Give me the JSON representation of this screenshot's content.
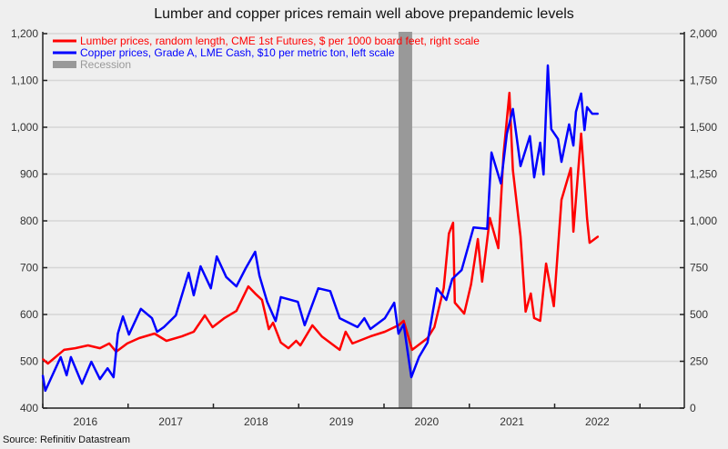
{
  "chart_data": {
    "type": "line",
    "title": "Lumber and copper prices remain well above prepandemic levels",
    "source": "Source: Refinitiv Datastream",
    "x_range": [
      2016.0,
      2023.52
    ],
    "x_tick_labels": [
      "2016",
      "2017",
      "2018",
      "2019",
      "2020",
      "2021",
      "2022"
    ],
    "left_axis": {
      "range": [
        400,
        1200
      ],
      "ticks": [
        "400",
        "500",
        "600",
        "700",
        "800",
        "900",
        "1,000",
        "1,100",
        "1,200"
      ],
      "tick_values": [
        400,
        500,
        600,
        700,
        800,
        900,
        1000,
        1100,
        1200
      ]
    },
    "right_axis": {
      "range": [
        0,
        2000
      ],
      "ticks": [
        "0",
        "250",
        "500",
        "750",
        "1,000",
        "1,250",
        "1,500",
        "1,750",
        "2,000"
      ],
      "tick_values": [
        0,
        250,
        500,
        750,
        1000,
        1250,
        1500,
        1750,
        2000
      ]
    },
    "grid": true,
    "legend_position": "top-left",
    "recession": {
      "label": "Recession",
      "start": 2020.17,
      "end": 2020.33,
      "color": "#999999"
    },
    "series": [
      {
        "name": "Lumber prices, random length, CME 1st Futures, $ per 1000 board feet, right scale",
        "axis": "right",
        "color": "#ff0000",
        "x": [
          2016.0,
          2016.06,
          2016.25,
          2016.38,
          2016.53,
          2016.67,
          2016.78,
          2016.86,
          2016.99,
          2017.13,
          2017.31,
          2017.45,
          2017.63,
          2017.77,
          2017.9,
          2017.99,
          2018.13,
          2018.27,
          2018.41,
          2018.49,
          2018.57,
          2018.65,
          2018.7,
          2018.79,
          2018.88,
          2018.97,
          2019.02,
          2019.16,
          2019.27,
          2019.48,
          2019.55,
          2019.63,
          2019.84,
          2020.01,
          2020.17,
          2020.23,
          2020.33,
          2020.51,
          2020.59,
          2020.7,
          2020.76,
          2020.81,
          2020.83,
          2020.94,
          2021.02,
          2021.1,
          2021.15,
          2021.24,
          2021.34,
          2021.4,
          2021.47,
          2021.51,
          2021.6,
          2021.66,
          2021.72,
          2021.76,
          2021.83,
          2021.9,
          2021.99,
          2022.08,
          2022.19,
          2022.22,
          2022.31,
          2022.38,
          2022.41,
          2022.51
        ],
        "y": [
          262,
          238,
          311,
          320,
          335,
          320,
          345,
          301,
          345,
          374,
          398,
          359,
          383,
          408,
          495,
          432,
          481,
          519,
          650,
          612,
          578,
          422,
          456,
          350,
          320,
          359,
          335,
          442,
          383,
          311,
          408,
          345,
          383,
          408,
          442,
          466,
          311,
          374,
          432,
          641,
          932,
          990,
          563,
          505,
          660,
          903,
          675,
          1015,
          854,
          1354,
          1684,
          1272,
          917,
          515,
          612,
          481,
          466,
          772,
          544,
          1112,
          1282,
          942,
          1466,
          1015,
          883,
          917
        ]
      },
      {
        "name": "Copper prices, Grade A, LME Cash, $10 per metric ton, left scale",
        "axis": "left",
        "color": "#0000ff",
        "x": [
          2016.0,
          2016.03,
          2016.21,
          2016.28,
          2016.33,
          2016.46,
          2016.57,
          2016.67,
          2016.76,
          2016.83,
          2016.88,
          2016.94,
          2017.01,
          2017.15,
          2017.28,
          2017.34,
          2017.42,
          2017.56,
          2017.71,
          2017.77,
          2017.85,
          2017.97,
          2018.04,
          2018.15,
          2018.27,
          2018.38,
          2018.49,
          2018.54,
          2018.63,
          2018.73,
          2018.79,
          2018.99,
          2019.07,
          2019.23,
          2019.37,
          2019.48,
          2019.69,
          2019.77,
          2019.84,
          2020.01,
          2020.12,
          2020.17,
          2020.23,
          2020.32,
          2020.41,
          2020.51,
          2020.62,
          2020.73,
          2020.8,
          2020.91,
          2021.05,
          2021.21,
          2021.26,
          2021.37,
          2021.44,
          2021.51,
          2021.6,
          2021.71,
          2021.76,
          2021.83,
          2021.87,
          2021.92,
          2021.96,
          2022.04,
          2022.08,
          2022.17,
          2022.22,
          2022.25,
          2022.31,
          2022.35,
          2022.38,
          2022.44,
          2022.51
        ],
        "y": [
          470,
          437,
          509,
          470,
          509,
          452,
          499,
          462,
          485,
          466,
          559,
          596,
          557,
          612,
          592,
          563,
          573,
          598,
          689,
          641,
          703,
          656,
          724,
          680,
          660,
          699,
          734,
          683,
          627,
          586,
          637,
          627,
          577,
          656,
          650,
          592,
          573,
          592,
          569,
          592,
          625,
          559,
          579,
          466,
          509,
          540,
          656,
          631,
          676,
          695,
          786,
          783,
          946,
          880,
          986,
          1039,
          917,
          981,
          893,
          967,
          899,
          1132,
          996,
          975,
          926,
          1006,
          961,
          1033,
          1072,
          994,
          1043,
          1029,
          1029
        ]
      }
    ]
  }
}
